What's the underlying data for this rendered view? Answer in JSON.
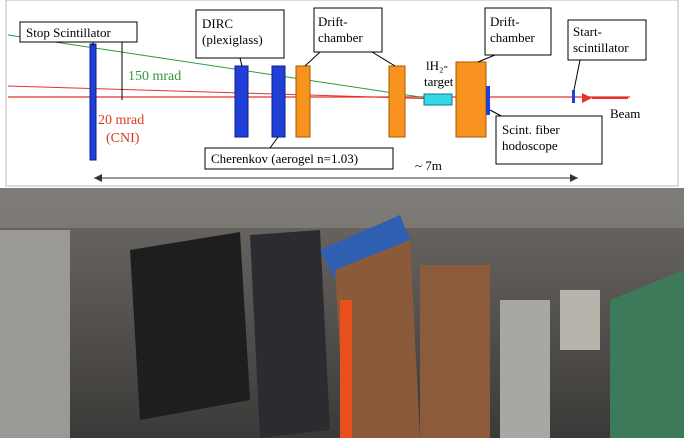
{
  "labels": {
    "stop_scintillator": "Stop Scintillator",
    "dirc": [
      "DIRC",
      "(plexiglass)"
    ],
    "drift_chamber_1": [
      "Drift-",
      "chamber"
    ],
    "target": [
      "lH₂-",
      "target"
    ],
    "drift_chamber_2": [
      "Drift-",
      "chamber"
    ],
    "start_scintillator": [
      "Start-",
      "scintillator"
    ],
    "angle_150": "150 mrad",
    "angle_20": [
      "20 mrad",
      "(CNI)"
    ],
    "cherenkov": "Cherenkov (aerogel n=1.03)",
    "hodoscope": [
      "Scint. fiber",
      "hodoscope"
    ],
    "beam": "Beam",
    "length": "~ 7m"
  }
}
